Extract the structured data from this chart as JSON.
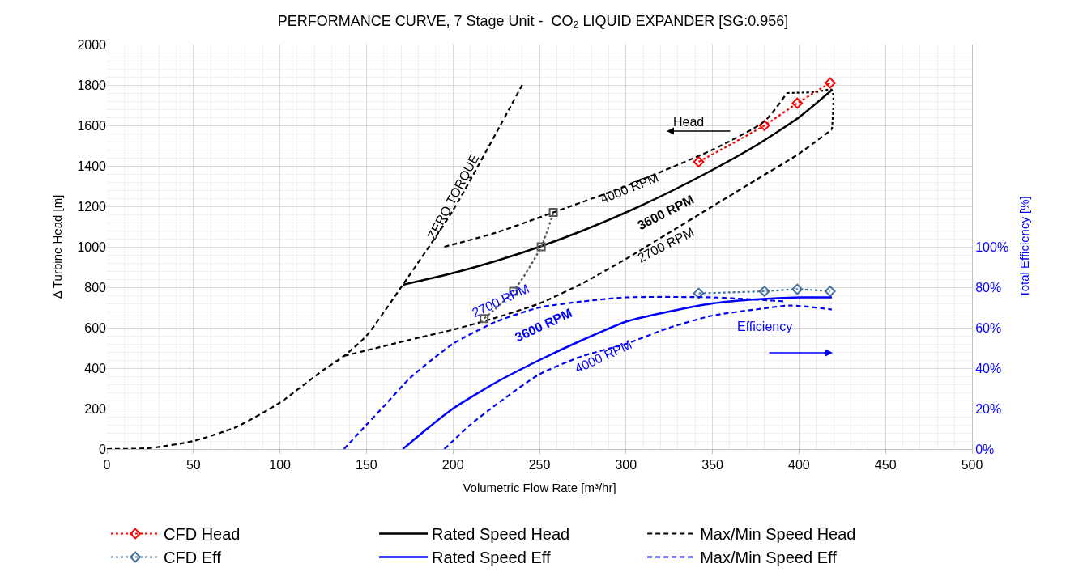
{
  "chart_data": {
    "type": "line",
    "title": "PERFORMANCE CURVE, 7 Stage Unit -  CO₂ LIQUID EXPANDER [SG:0.956]",
    "xlabel": "Volumetric Flow Rate [m³/hr]",
    "ylabel": "Δ Turbine Head [m]",
    "y2label": "Total Efficiency [%]",
    "xlim": [
      0,
      500
    ],
    "xticks": [
      0,
      50,
      100,
      150,
      200,
      250,
      300,
      350,
      400,
      450,
      500
    ],
    "ylim": [
      0,
      2000
    ],
    "yticks": [
      0,
      200,
      400,
      600,
      800,
      1000,
      1200,
      1400,
      1600,
      1800,
      2000
    ],
    "y2lim": [
      0,
      200
    ],
    "y2ticks": [
      {
        "value": 0,
        "label": "0%"
      },
      {
        "value": 20,
        "label": "20%"
      },
      {
        "value": 40,
        "label": "40%"
      },
      {
        "value": 60,
        "label": "60%"
      },
      {
        "value": 80,
        "label": "80%"
      },
      {
        "value": 100,
        "label": "100%"
      }
    ],
    "grid": true,
    "legend": "bottom",
    "series": [
      {
        "name": "CFD Head",
        "color": "#ff0000",
        "marker": "diamond",
        "line_style": "dotted",
        "x": [
          342,
          380,
          399,
          418
        ],
        "values": [
          1420,
          1600,
          1710,
          1810
        ]
      },
      {
        "name": "Rated Speed Head",
        "color": "#000000",
        "marker": "none",
        "line_style": "solid",
        "x": [
          171,
          200,
          225,
          250,
          275,
          300,
          325,
          350,
          375,
          400,
          419
        ],
        "values": [
          812,
          870,
          930,
          1000,
          1080,
          1170,
          1270,
          1380,
          1500,
          1640,
          1775
        ]
      },
      {
        "name": "Max/Min Speed Head",
        "color": "#000000",
        "marker": "none",
        "line_style": "dashed",
        "x": [
          195,
          225,
          258,
          300,
          350,
          380,
          393
        ],
        "values": [
          1000,
          1070,
          1170,
          1300,
          1480,
          1620,
          1760
        ]
      },
      {
        "name": "CFD Eff",
        "color": "#41719c",
        "marker": "diamond",
        "line_style": "dotted",
        "axis": "y2",
        "x": [
          342,
          380,
          399,
          418
        ],
        "values": [
          77,
          78,
          79,
          78
        ]
      },
      {
        "name": "Rated Speed Eff",
        "color": "#0000ff",
        "marker": "none",
        "line_style": "solid",
        "axis": "y2",
        "x": [
          171,
          185,
          200,
          225,
          250,
          275,
          300,
          325,
          350,
          375,
          400,
          419
        ],
        "values": [
          0,
          10,
          20,
          33,
          44,
          54,
          63,
          68,
          72,
          74,
          75,
          75
        ]
      },
      {
        "name": "Max/Min Speed Eff",
        "color": "#0000ff",
        "marker": "none",
        "line_style": "dashed",
        "axis": "y2",
        "x": [
          137,
          150,
          161,
          175,
          200,
          225,
          250,
          275,
          300,
          350,
          392
        ],
        "values": [
          0,
          12,
          22,
          35,
          52,
          63,
          70,
          73,
          75,
          75,
          73
        ]
      },
      {
        "color": "#0000ff",
        "marker": "none",
        "line_style": "dashed",
        "axis": "y2",
        "x": [
          195,
          210,
          225,
          250,
          275,
          300,
          325,
          350,
          375,
          395,
          419
        ],
        "values": [
          0,
          12,
          22,
          37,
          46,
          52,
          60,
          66,
          69,
          71,
          69
        ]
      },
      {
        "color": "#000000",
        "marker": "none",
        "line_style": "dashed",
        "x": [
          137,
          175,
          200,
          225,
          250,
          275,
          300,
          325,
          350,
          375,
          400,
          419
        ],
        "values": [
          460,
          540,
          590,
          650,
          720,
          820,
          940,
          1070,
          1200,
          1330,
          1460,
          1580
        ]
      },
      {
        "color": "#000000",
        "marker": "none",
        "line_style": "dashed",
        "x": [
          0,
          25,
          50,
          75,
          100,
          125,
          137,
          150,
          171,
          200,
          240
        ],
        "values": [
          0,
          5,
          40,
          110,
          230,
          390,
          460,
          560,
          812,
          1180,
          1800
        ]
      },
      {
        "color": "#595959",
        "marker": "square",
        "line_style": "dotted",
        "x": [
          218,
          235,
          251,
          258
        ],
        "values": [
          645,
          780,
          1000,
          1170
        ]
      },
      {
        "color": "#000000",
        "marker": "none",
        "line_style": "dotted",
        "x": [
          393,
          410,
          419,
          419
        ],
        "values": [
          1760,
          1765,
          1775,
          1580
        ]
      }
    ],
    "annotations": [
      "ZERO TORQUE",
      "4000 RPM",
      "3600 RPM",
      "2700 RPM",
      "Head",
      "2700 RPM",
      "3600 RPM",
      "4000 RPM",
      "Efficiency"
    ]
  }
}
